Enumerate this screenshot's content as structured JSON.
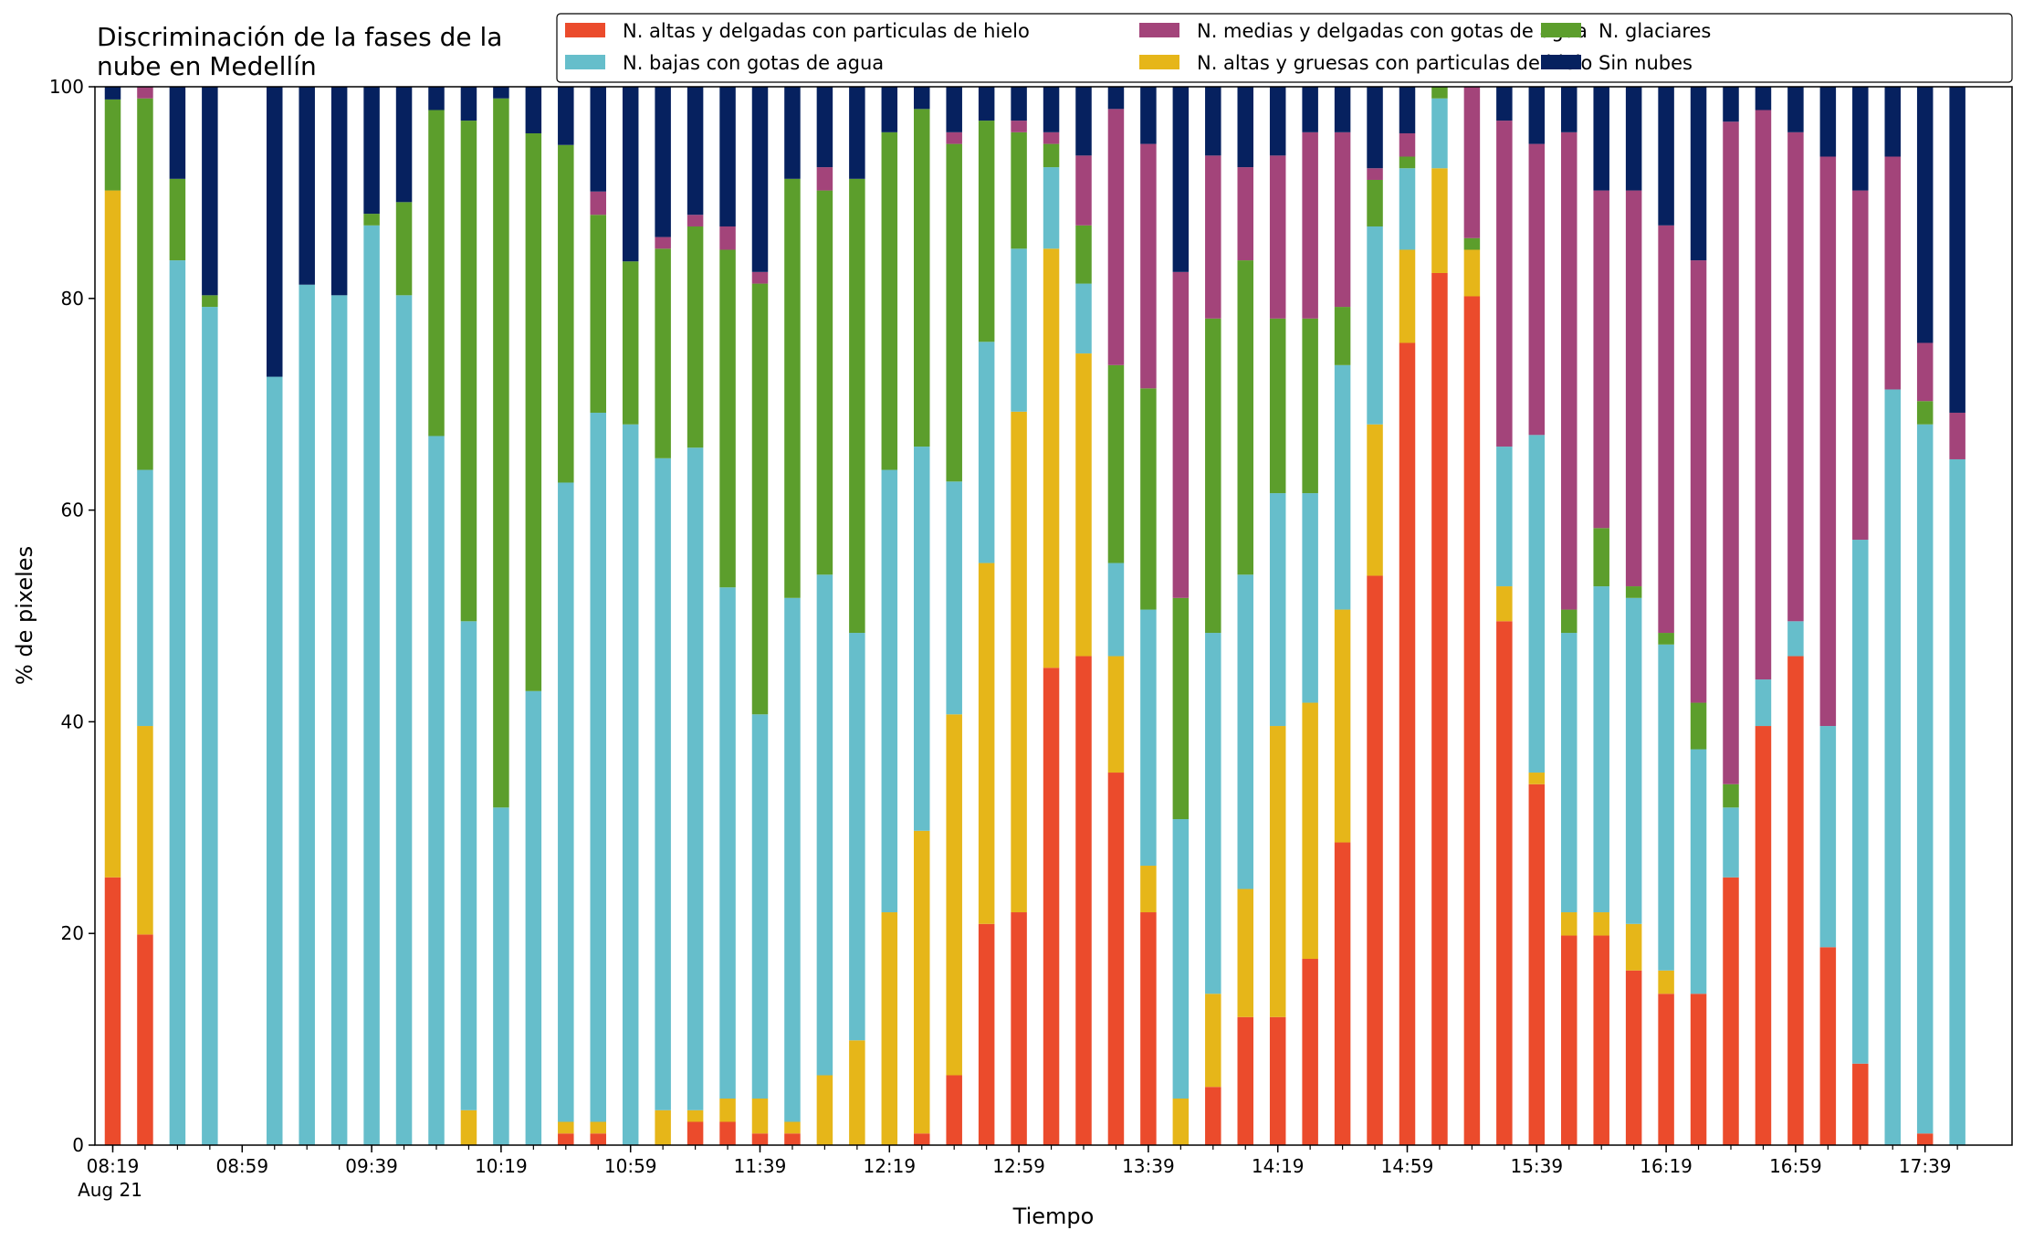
{
  "chart_data": {
    "type": "bar",
    "stacked": true,
    "title_lines": [
      "Discriminación de la fases de la",
      "nube en Medellín"
    ],
    "xlabel": "Tiempo",
    "ylabel": "% de pixeles",
    "ylim": [
      0,
      100
    ],
    "yticks": [
      0,
      20,
      40,
      60,
      80,
      100
    ],
    "grid": false,
    "legend_position": "top-right",
    "legend_columns": 3,
    "x_ticks": [
      {
        "slot": 0,
        "label": "08:19"
      },
      {
        "slot": 4,
        "label": "08:59"
      },
      {
        "slot": 8,
        "label": "09:39"
      },
      {
        "slot": 12,
        "label": "10:19"
      },
      {
        "slot": 16,
        "label": "10:59"
      },
      {
        "slot": 20,
        "label": "11:39"
      },
      {
        "slot": 24,
        "label": "12:19"
      },
      {
        "slot": 28,
        "label": "12:59"
      },
      {
        "slot": 32,
        "label": "13:39"
      },
      {
        "slot": 36,
        "label": "14:19"
      },
      {
        "slot": 40,
        "label": "14:59"
      },
      {
        "slot": 44,
        "label": "15:39"
      },
      {
        "slot": 48,
        "label": "16:19"
      },
      {
        "slot": 52,
        "label": "16:59"
      },
      {
        "slot": 56,
        "label": "17:39"
      }
    ],
    "x_date_label": "Aug 21",
    "slot_count": 58,
    "series": [
      {
        "name": "N. altas y delgadas con particulas de hielo",
        "color": "#EB4B2C"
      },
      {
        "name": "N. altas y gruesas con particulas de hielo",
        "color": "#E6B619"
      },
      {
        "name": "N. bajas con gotas de agua",
        "color": "#66BECB"
      },
      {
        "name": "N. glaciares",
        "color": "#5C9E2C"
      },
      {
        "name": "N. medias y delgadas con gotas de agua",
        "color": "#A3447A"
      },
      {
        "name": "Sin nubes",
        "color": "#06215F"
      }
    ],
    "legend_order": [
      0,
      2,
      4,
      1,
      3,
      5
    ],
    "bars": [
      {
        "slot": 0,
        "values": [
          25.3,
          64.9,
          0,
          8.6,
          0,
          1.2
        ]
      },
      {
        "slot": 1,
        "values": [
          19.9,
          19.7,
          24.2,
          35.1,
          1.1,
          0
        ]
      },
      {
        "slot": 2,
        "values": [
          0,
          0,
          83.6,
          7.7,
          0,
          8.7
        ]
      },
      {
        "slot": 3,
        "values": [
          0,
          0,
          79.2,
          1.1,
          0,
          19.7
        ]
      },
      {
        "slot": 5,
        "values": [
          0,
          0,
          72.6,
          0,
          0,
          27.4
        ]
      },
      {
        "slot": 6,
        "values": [
          0,
          0,
          81.3,
          0,
          0,
          18.7
        ]
      },
      {
        "slot": 7,
        "values": [
          0,
          0,
          80.3,
          0,
          0,
          19.7
        ]
      },
      {
        "slot": 8,
        "values": [
          0,
          0,
          86.9,
          1.1,
          0,
          12.0
        ]
      },
      {
        "slot": 9,
        "values": [
          0,
          0,
          80.3,
          8.8,
          0,
          10.9
        ]
      },
      {
        "slot": 10,
        "values": [
          0,
          0,
          67.0,
          30.8,
          0,
          2.2
        ]
      },
      {
        "slot": 11,
        "values": [
          0,
          3.3,
          46.2,
          47.3,
          0,
          3.2
        ]
      },
      {
        "slot": 12,
        "values": [
          0,
          0,
          31.9,
          67.0,
          0,
          1.1
        ]
      },
      {
        "slot": 13,
        "values": [
          0,
          0,
          42.9,
          52.7,
          0,
          4.4
        ]
      },
      {
        "slot": 14,
        "values": [
          1.1,
          1.1,
          60.4,
          31.9,
          0,
          5.5
        ]
      },
      {
        "slot": 15,
        "values": [
          1.1,
          1.1,
          67.0,
          18.7,
          2.2,
          9.9
        ]
      },
      {
        "slot": 16,
        "values": [
          0,
          0,
          68.1,
          15.4,
          0,
          16.5
        ]
      },
      {
        "slot": 17,
        "values": [
          0,
          3.3,
          61.6,
          19.8,
          1.1,
          14.2
        ]
      },
      {
        "slot": 18,
        "values": [
          2.2,
          1.1,
          62.6,
          20.9,
          1.1,
          12.1
        ]
      },
      {
        "slot": 19,
        "values": [
          2.2,
          2.2,
          48.3,
          31.9,
          2.2,
          13.2
        ]
      },
      {
        "slot": 20,
        "values": [
          1.1,
          3.3,
          36.3,
          40.7,
          1.1,
          17.5
        ]
      },
      {
        "slot": 21,
        "values": [
          1.1,
          1.1,
          49.5,
          39.6,
          0,
          8.7
        ]
      },
      {
        "slot": 22,
        "values": [
          0,
          6.6,
          47.3,
          36.3,
          2.2,
          7.6
        ]
      },
      {
        "slot": 23,
        "values": [
          0,
          9.9,
          38.5,
          42.9,
          0,
          8.7
        ]
      },
      {
        "slot": 24,
        "values": [
          0,
          22.0,
          41.8,
          31.9,
          0,
          4.3
        ]
      },
      {
        "slot": 25,
        "values": [
          1.1,
          28.6,
          36.3,
          31.9,
          0,
          2.1
        ]
      },
      {
        "slot": 26,
        "values": [
          6.6,
          34.1,
          22.0,
          31.9,
          1.1,
          4.3
        ]
      },
      {
        "slot": 27,
        "values": [
          20.9,
          34.1,
          20.9,
          20.9,
          0,
          3.2
        ]
      },
      {
        "slot": 28,
        "values": [
          22.0,
          47.3,
          15.4,
          11.0,
          1.1,
          3.2
        ]
      },
      {
        "slot": 29,
        "values": [
          45.1,
          39.6,
          7.7,
          2.2,
          1.1,
          4.3
        ]
      },
      {
        "slot": 30,
        "values": [
          46.2,
          28.6,
          6.6,
          5.5,
          6.6,
          6.5
        ]
      },
      {
        "slot": 31,
        "values": [
          35.2,
          11.0,
          8.8,
          18.7,
          24.2,
          2.1
        ]
      },
      {
        "slot": 32,
        "values": [
          22.0,
          4.4,
          24.2,
          20.9,
          23.1,
          5.4
        ]
      },
      {
        "slot": 33,
        "values": [
          0,
          4.4,
          26.4,
          20.9,
          30.8,
          17.5
        ]
      },
      {
        "slot": 34,
        "values": [
          5.5,
          8.8,
          34.1,
          29.7,
          15.4,
          6.5
        ]
      },
      {
        "slot": 35,
        "values": [
          12.1,
          12.1,
          29.7,
          29.7,
          8.8,
          7.6
        ]
      },
      {
        "slot": 36,
        "values": [
          12.1,
          27.5,
          22.0,
          16.5,
          15.4,
          6.5
        ]
      },
      {
        "slot": 37,
        "values": [
          17.6,
          24.2,
          19.8,
          16.5,
          17.6,
          4.3
        ]
      },
      {
        "slot": 38,
        "values": [
          28.6,
          22.0,
          23.1,
          5.5,
          16.5,
          4.3
        ]
      },
      {
        "slot": 39,
        "values": [
          53.8,
          14.3,
          18.7,
          4.4,
          1.1,
          7.7
        ]
      },
      {
        "slot": 40,
        "values": [
          75.8,
          8.8,
          7.7,
          1.1,
          2.2,
          4.4
        ]
      },
      {
        "slot": 41,
        "values": [
          82.4,
          9.9,
          6.6,
          1.1,
          0,
          0
        ]
      },
      {
        "slot": 42,
        "values": [
          80.2,
          4.4,
          0,
          1.1,
          14.3,
          0
        ]
      },
      {
        "slot": 43,
        "values": [
          49.5,
          3.3,
          13.2,
          0,
          30.8,
          3.2
        ]
      },
      {
        "slot": 44,
        "values": [
          34.1,
          1.1,
          31.9,
          0,
          27.5,
          5.4
        ]
      },
      {
        "slot": 45,
        "values": [
          19.8,
          2.2,
          26.4,
          2.2,
          45.1,
          4.3
        ]
      },
      {
        "slot": 46,
        "values": [
          19.8,
          2.2,
          30.8,
          5.5,
          31.9,
          9.8
        ]
      },
      {
        "slot": 47,
        "values": [
          16.5,
          4.4,
          30.8,
          1.1,
          37.4,
          9.8
        ]
      },
      {
        "slot": 48,
        "values": [
          14.3,
          2.2,
          30.8,
          1.1,
          38.5,
          13.1
        ]
      },
      {
        "slot": 49,
        "values": [
          14.3,
          0,
          23.1,
          4.4,
          41.8,
          16.4
        ]
      },
      {
        "slot": 50,
        "values": [
          25.3,
          0,
          6.6,
          2.2,
          62.6,
          3.3
        ]
      },
      {
        "slot": 51,
        "values": [
          39.6,
          0,
          4.4,
          0,
          53.8,
          2.2
        ]
      },
      {
        "slot": 52,
        "values": [
          46.2,
          0,
          3.3,
          0,
          46.2,
          4.3
        ]
      },
      {
        "slot": 53,
        "values": [
          18.7,
          0,
          20.9,
          0,
          53.8,
          6.6
        ]
      },
      {
        "slot": 54,
        "values": [
          7.7,
          0,
          49.5,
          0,
          33.0,
          9.8
        ]
      },
      {
        "slot": 55,
        "values": [
          0,
          0,
          71.4,
          0,
          22.0,
          6.6
        ]
      },
      {
        "slot": 56,
        "values": [
          1.1,
          0,
          67.0,
          2.2,
          5.5,
          24.2
        ]
      },
      {
        "slot": 57,
        "values": [
          0,
          0,
          64.8,
          0,
          4.4,
          30.8
        ]
      }
    ]
  }
}
